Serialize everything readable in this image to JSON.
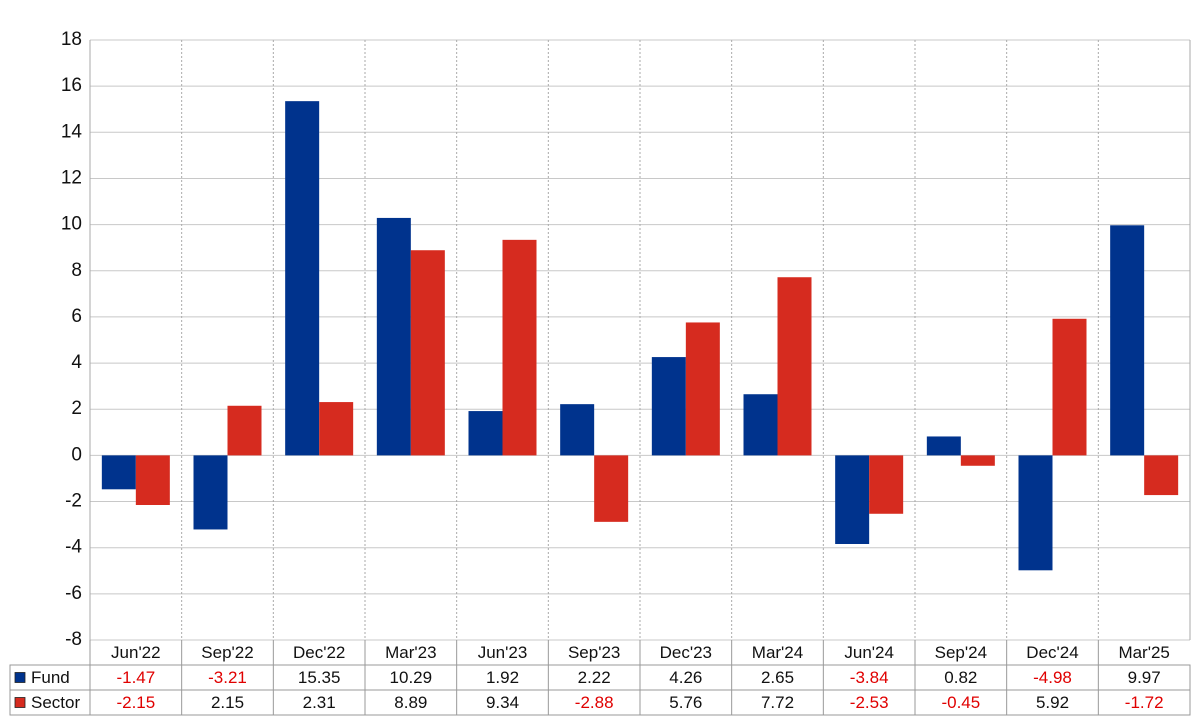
{
  "chart_data": {
    "type": "bar",
    "categories": [
      "Jun'22",
      "Sep'22",
      "Dec'22",
      "Mar'23",
      "Jun'23",
      "Sep'23",
      "Dec'23",
      "Mar'24",
      "Jun'24",
      "Sep'24",
      "Dec'24",
      "Mar'25"
    ],
    "series": [
      {
        "name": "Fund",
        "color": "#00338d",
        "values": [
          -1.47,
          -3.21,
          15.35,
          10.29,
          1.92,
          2.22,
          4.26,
          2.65,
          -3.84,
          0.82,
          -4.98,
          9.97
        ]
      },
      {
        "name": "Sector",
        "color": "#d62b1f",
        "values": [
          -2.15,
          2.15,
          2.31,
          8.89,
          9.34,
          -2.88,
          5.76,
          7.72,
          -2.53,
          -0.45,
          5.92,
          -1.72
        ]
      }
    ],
    "ylim": [
      -8,
      18
    ],
    "yticks": [
      -8,
      -6,
      -4,
      -2,
      0,
      2,
      4,
      6,
      8,
      10,
      12,
      14,
      16,
      18
    ],
    "grid": true,
    "negative_color": "#e00000"
  }
}
